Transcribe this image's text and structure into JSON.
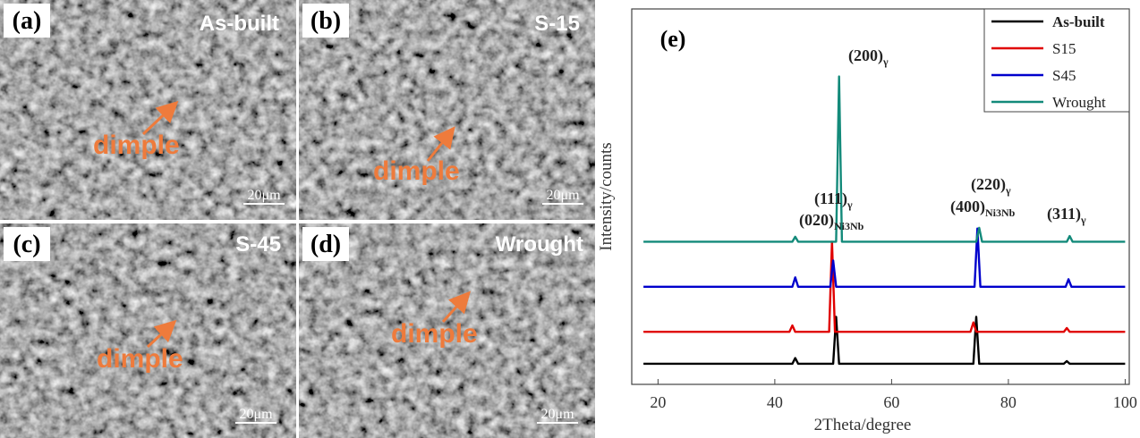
{
  "panels": [
    {
      "label": "(a)",
      "title": "As-built",
      "annotation": "dimple",
      "scale": "20μm"
    },
    {
      "label": "(b)",
      "title": "S-15",
      "annotation": "dimple",
      "scale": "20μm"
    },
    {
      "label": "(c)",
      "title": "S-45",
      "annotation": "dimple",
      "scale": "20μm"
    },
    {
      "label": "(d)",
      "title": "Wrought",
      "annotation": "dimple",
      "scale": "20μm"
    }
  ],
  "chart_data": {
    "type": "line",
    "panel_label": "(e)",
    "x_label": "2Theta/degree",
    "y_label": "Intensity/counts",
    "xlim": [
      15.5,
      100.7
    ],
    "xticks": [
      20,
      40,
      60,
      80,
      100
    ],
    "ylim": [
      0,
      100
    ],
    "legend": "upper right",
    "series": [
      {
        "name": "As-built",
        "color": "#000000",
        "x": [
          17.5,
          43,
          43.5,
          44,
          50,
          50.5,
          51,
          74,
          74.5,
          75,
          89.5,
          90,
          90.5,
          100
        ],
        "values": [
          5.5,
          5.5,
          7,
          5.5,
          5.5,
          18,
          5.5,
          5.5,
          18,
          5.5,
          5.5,
          6.2,
          5.5,
          5.5
        ]
      },
      {
        "name": "S15",
        "color": "#e00000",
        "x": [
          17.5,
          42.5,
          43,
          43.5,
          49.3,
          49.8,
          50.3,
          73.5,
          74,
          74.5,
          89.5,
          90,
          90.5,
          100
        ],
        "values": [
          14,
          14,
          15.7,
          14,
          14,
          38,
          14,
          14,
          16.5,
          14,
          14,
          15,
          14,
          14
        ]
      },
      {
        "name": "S45",
        "color": "#0000cc",
        "x": [
          17.5,
          43,
          43.5,
          44,
          49.5,
          50,
          50.5,
          74.2,
          74.7,
          75.2,
          89.8,
          90.3,
          90.8,
          100
        ],
        "values": [
          26,
          26,
          28.5,
          26,
          26,
          33,
          26,
          26,
          41.5,
          26,
          26,
          28,
          26,
          26
        ]
      },
      {
        "name": "Wrought",
        "color": "#138a7a",
        "x": [
          17.5,
          43,
          43.5,
          44,
          50.5,
          51,
          51.5,
          74.5,
          75,
          75.5,
          90,
          90.5,
          91,
          100
        ],
        "values": [
          38,
          38,
          39.3,
          38,
          38,
          82,
          38,
          38,
          41.7,
          38,
          38,
          39.5,
          38,
          38
        ]
      }
    ],
    "annotations": [
      {
        "text": "(200)",
        "sub": "γ"
      },
      {
        "text": "(111)",
        "sub": "γ"
      },
      {
        "text": "(020)",
        "sub": "Ni3Nb"
      },
      {
        "text": "(220)",
        "sub": "γ"
      },
      {
        "text": "(400)",
        "sub": "Ni3Nb"
      },
      {
        "text": "(311)",
        "sub": "γ"
      }
    ]
  }
}
